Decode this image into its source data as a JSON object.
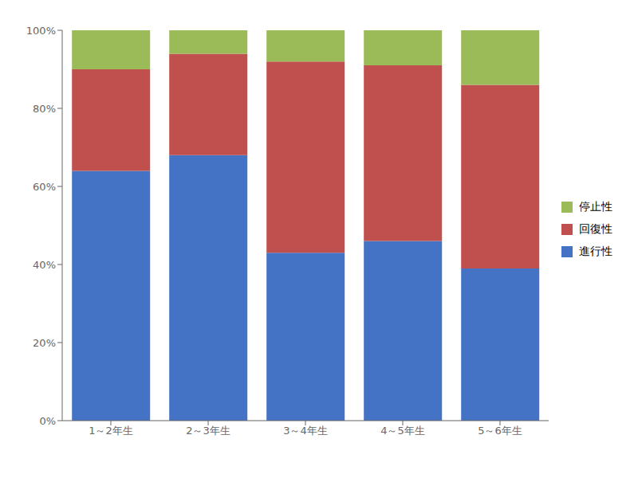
{
  "chart_data": {
    "type": "bar",
    "stacked": true,
    "categories": [
      "1～2年生",
      "2～3年生",
      "3～4年生",
      "4～5年生",
      "5～6年生"
    ],
    "series": [
      {
        "name": "進行性",
        "color": "#4472C4",
        "values": [
          0.64,
          0.68,
          0.43,
          0.46,
          0.39
        ]
      },
      {
        "name": "回復性",
        "color": "#C0504D",
        "values": [
          0.26,
          0.26,
          0.49,
          0.45,
          0.47
        ]
      },
      {
        "name": "停止性",
        "color": "#9BBB59",
        "values": [
          0.1,
          0.06,
          0.08,
          0.09,
          0.14
        ]
      }
    ],
    "ylim": [
      0,
      1.0
    ],
    "yticks": [
      {
        "value": 0.0,
        "label": "0%"
      },
      {
        "value": 0.2,
        "label": "20%"
      },
      {
        "value": 0.4,
        "label": "40%"
      },
      {
        "value": 0.6,
        "label": "60%"
      },
      {
        "value": 0.8,
        "label": "80%"
      },
      {
        "value": 1.0,
        "label": "100%"
      }
    ],
    "grid": false,
    "legend": "right"
  }
}
